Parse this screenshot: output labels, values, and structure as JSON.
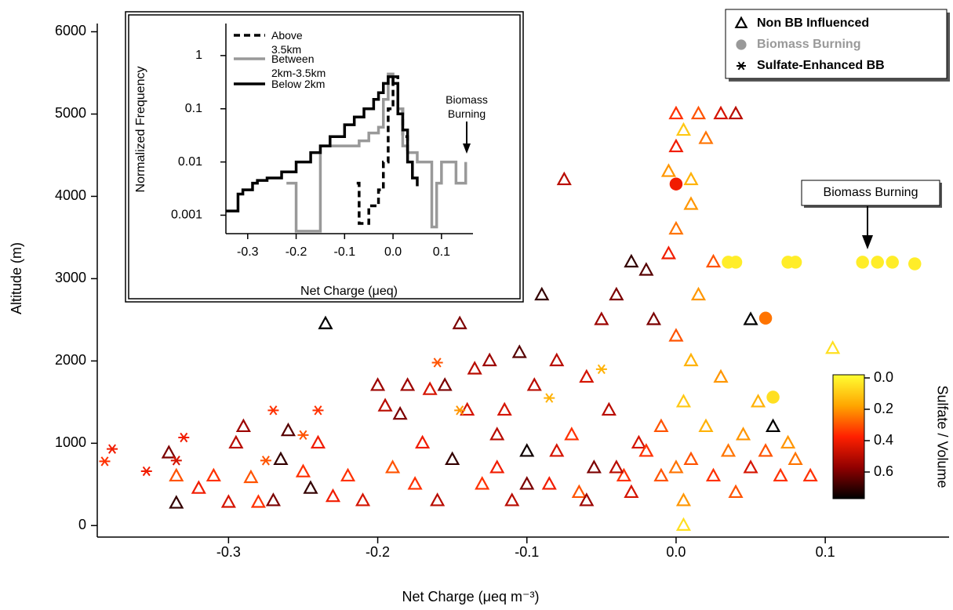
{
  "chart_data": [
    {
      "type": "scatter",
      "x_label": "Net Charge (μeq m⁻³)",
      "y_label": "Altitude (m)",
      "xlim": [
        -0.388,
        0.183
      ],
      "ylim": [
        -140,
        6100
      ],
      "xticks": [
        -0.3,
        -0.2,
        -0.1,
        {
          "value": 0,
          "label": "0.0"
        },
        0.1
      ],
      "yticks": [
        0,
        1000,
        2000,
        3000,
        4000,
        5000,
        6000
      ],
      "series": [
        {
          "name": "Non BB Influenced",
          "marker": "triangle",
          "legend_color": "#000000",
          "x": [
            -0.335,
            -0.34,
            -0.335,
            -0.32,
            -0.31,
            -0.3,
            -0.295,
            -0.29,
            -0.285,
            -0.28,
            -0.27,
            -0.265,
            -0.26,
            -0.25,
            -0.245,
            -0.24,
            -0.235,
            -0.23,
            -0.22,
            -0.21,
            -0.2,
            -0.195,
            -0.19,
            -0.185,
            -0.18,
            -0.175,
            -0.17,
            -0.165,
            -0.16,
            -0.155,
            -0.15,
            -0.145,
            -0.14,
            -0.135,
            -0.13,
            -0.125,
            -0.12,
            -0.115,
            -0.11,
            -0.105,
            -0.1,
            -0.095,
            -0.09,
            -0.085,
            -0.08,
            -0.075,
            -0.07,
            -0.065,
            -0.06,
            -0.055,
            -0.05,
            -0.045,
            -0.04,
            -0.035,
            -0.03,
            -0.025,
            -0.02,
            -0.015,
            -0.01,
            -0.005,
            0,
            0,
            0.005,
            0.005,
            0.01,
            0.01,
            0.015,
            0.015,
            0.02,
            0.02,
            0.025,
            0.025,
            0.03,
            0.03,
            0.035,
            0.04,
            0.04,
            0.045,
            0.05,
            0.05,
            0.055,
            0.06,
            0.065,
            0.07,
            0.075,
            0.08,
            0.09,
            0.105,
            -0.04,
            -0.03,
            -0.02,
            -0.01,
            0,
            0.005,
            0.01,
            -0.06,
            -0.08,
            -0.1,
            -0.12,
            0,
            0.01,
            -0.005,
            0,
            0.005
          ],
          "y": [
            270,
            880,
            600,
            450,
            600,
            280,
            1000,
            1200,
            580,
            280,
            300,
            800,
            1150,
            650,
            450,
            1000,
            2450,
            350,
            600,
            300,
            1700,
            1450,
            700,
            1350,
            1700,
            500,
            1000,
            1650,
            300,
            1700,
            800,
            2450,
            1400,
            1900,
            500,
            2000,
            700,
            1400,
            300,
            2100,
            900,
            1700,
            2800,
            500,
            2000,
            4200,
            1100,
            400,
            1800,
            700,
            2500,
            1400,
            2800,
            600,
            3200,
            1000,
            3100,
            2500,
            600,
            4300,
            5000,
            3600,
            4800,
            1500,
            4200,
            800,
            5000,
            2800,
            4700,
            1200,
            3200,
            600,
            5000,
            1800,
            900,
            5000,
            400,
            1100,
            2500,
            700,
            1500,
            900,
            1200,
            600,
            1000,
            800,
            600,
            2150,
            700,
            400,
            900,
            1200,
            700,
            300,
            2000,
            300,
            900,
            500,
            1100,
            4600,
            3900,
            3300,
            2300,
            0
          ],
          "c": [
            0.7,
            0.6,
            0.3,
            0.4,
            0.35,
            0.45,
            0.5,
            0.55,
            0.3,
            0.35,
            0.6,
            0.7,
            0.65,
            0.35,
            0.7,
            0.4,
            0.8,
            0.4,
            0.35,
            0.45,
            0.55,
            0.5,
            0.3,
            0.6,
            0.55,
            0.35,
            0.4,
            0.45,
            0.5,
            0.6,
            0.7,
            0.6,
            0.45,
            0.5,
            0.35,
            0.55,
            0.4,
            0.45,
            0.5,
            0.65,
            0.75,
            0.5,
            0.7,
            0.4,
            0.5,
            0.5,
            0.35,
            0.3,
            0.45,
            0.6,
            0.55,
            0.5,
            0.6,
            0.35,
            0.7,
            0.45,
            0.65,
            0.6,
            0.3,
            0.2,
            0.35,
            0.25,
            0.1,
            0.1,
            0.15,
            0.3,
            0.3,
            0.2,
            0.25,
            0.15,
            0.3,
            0.35,
            0.45,
            0.2,
            0.25,
            0.5,
            0.3,
            0.2,
            0.8,
            0.45,
            0.15,
            0.3,
            0.8,
            0.35,
            0.2,
            0.25,
            0.35,
            0.05,
            0.5,
            0.45,
            0.35,
            0.3,
            0.25,
            0.2,
            0.15,
            0.55,
            0.45,
            0.6,
            0.5,
            0.4,
            0.2,
            0.4,
            0.3,
            0.05
          ]
        },
        {
          "name": "Biomass Burning",
          "marker": "circle",
          "legend_color": "#999999",
          "x": [
            0.125,
            0.135,
            0.145,
            0.16,
            0.075,
            0.08,
            0.035,
            0.04,
            0.06,
            0.065,
            0
          ],
          "y": [
            3200,
            3200,
            3200,
            3180,
            3200,
            3200,
            3200,
            3200,
            2520,
            1560,
            4150
          ],
          "c": [
            0.02,
            0.02,
            0.02,
            0.02,
            0.02,
            0.02,
            0.02,
            0.02,
            0.25,
            0.05,
            0.4
          ]
        },
        {
          "name": "Sulfate-Enhanced BB",
          "marker": "asterisk",
          "legend_color": "#000000",
          "x": [
            -0.383,
            -0.378,
            -0.355,
            -0.335,
            -0.33,
            -0.27,
            -0.275,
            -0.24,
            -0.16,
            -0.145,
            -0.05,
            -0.085,
            -0.25
          ],
          "y": [
            780,
            930,
            660,
            790,
            1070,
            1400,
            790,
            1400,
            1980,
            1400,
            1900,
            1550,
            1100
          ],
          "c": [
            0.35,
            0.4,
            0.4,
            0.45,
            0.4,
            0.35,
            0.3,
            0.35,
            0.3,
            0.2,
            0.15,
            0.15,
            0.3
          ]
        }
      ],
      "colorbar": {
        "title": "Sulfate / Volume",
        "lim": [
          -0.02,
          0.77
        ],
        "ticks": [
          {
            "value": 0,
            "label": "0.0"
          },
          0.2,
          0.4,
          0.6
        ],
        "colorscale": [
          "#ffff33",
          "#ffa500",
          "#ff2000",
          "#900000",
          "#000000"
        ]
      },
      "annotation": "Biomass Burning"
    },
    {
      "type": "line",
      "log_y": true,
      "step": true,
      "x_label": "Net Charge (μeq)",
      "y_label": "Normalized Frequency",
      "xlim": [
        -0.345,
        0.165
      ],
      "ylim": [
        0.00045,
        4
      ],
      "xticks": [
        -0.3,
        -0.2,
        -0.1,
        {
          "value": 0,
          "label": "0.0"
        },
        0.1
      ],
      "yticks": [
        0.001,
        0.01,
        0.1,
        1
      ],
      "series": [
        {
          "name": "Above 3.5km",
          "color": "#000000",
          "dash": true,
          "x": [
            -0.075,
            -0.07,
            -0.05,
            -0.03,
            -0.02,
            -0.01,
            0,
            0.01,
            0.02,
            0.03
          ],
          "values": [
            0.004,
            0.0007,
            0.0015,
            0.003,
            0.01,
            0.1,
            0.4,
            0.1,
            0.03,
            0.015
          ]
        },
        {
          "name": "Between 2km-3.5km",
          "color": "#999999",
          "dash": false,
          "x": [
            -0.22,
            -0.2,
            -0.15,
            -0.13,
            -0.1,
            -0.07,
            -0.05,
            -0.03,
            -0.02,
            -0.01,
            0,
            0.01,
            0.02,
            0.03,
            0.05,
            0.07,
            0.08,
            0.09,
            0.1,
            0.13,
            0.15
          ],
          "values": [
            0.004,
            0.0005,
            0.02,
            0.02,
            0.02,
            0.025,
            0.035,
            0.045,
            0.15,
            0.45,
            0.3,
            0.1,
            0.02,
            0.015,
            0.01,
            0.01,
            0.0006,
            0.004,
            0.01,
            0.004,
            0.01
          ]
        },
        {
          "name": "Below 2km",
          "color": "#000000",
          "dash": false,
          "x": [
            -0.345,
            -0.32,
            -0.31,
            -0.29,
            -0.28,
            -0.26,
            -0.23,
            -0.2,
            -0.17,
            -0.15,
            -0.13,
            -0.1,
            -0.08,
            -0.06,
            -0.04,
            -0.03,
            -0.02,
            -0.01,
            0,
            0.01,
            0.02,
            0.03,
            0.04,
            0.05
          ],
          "values": [
            0.0012,
            0.0025,
            0.003,
            0.004,
            0.0045,
            0.005,
            0.0065,
            0.01,
            0.015,
            0.02,
            0.03,
            0.05,
            0.07,
            0.1,
            0.15,
            0.2,
            0.3,
            0.4,
            0.3,
            0.08,
            0.04,
            0.01,
            0.005,
            0.0035
          ]
        }
      ],
      "annotation": "Biomass Burning"
    }
  ]
}
